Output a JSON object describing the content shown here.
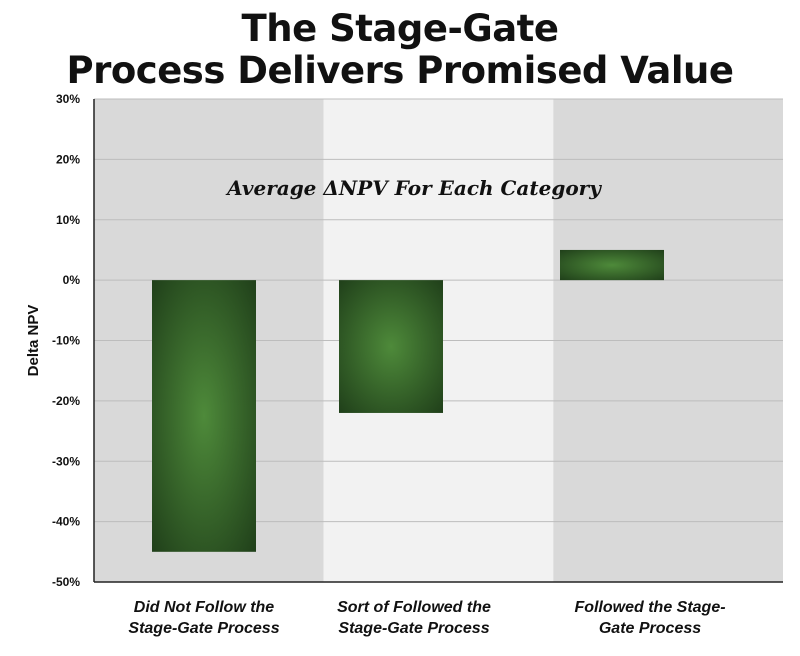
{
  "title_lines": [
    "The Stage-Gate",
    "Process Delivers Promised Value"
  ],
  "chart_data": {
    "type": "bar",
    "title": "The Stage-Gate Process Delivers Promised Value",
    "annotation": "Average ΔNPV For Each Category",
    "ylabel": "Delta NPV",
    "categories": [
      "Did Not Follow the Stage-Gate Process",
      "Sort of Followed the Stage-Gate Process",
      "Followed the Stage-Gate Process"
    ],
    "category_lines": [
      [
        "Did Not Follow the",
        "Stage-Gate Process"
      ],
      [
        "Sort of Followed the",
        "Stage-Gate Process"
      ],
      [
        "Followed the Stage-",
        "Gate Process"
      ]
    ],
    "values": [
      -45,
      -22,
      5
    ],
    "unit": "%",
    "ylim": [
      -50,
      30
    ],
    "yticks": [
      30,
      20,
      10,
      0,
      -10,
      -20,
      -30,
      -40,
      -50
    ],
    "ytick_labels": [
      "30%",
      "20%",
      "10%",
      "0%",
      "-10%",
      "-20%",
      "-30%",
      "-40%",
      "-50%"
    ],
    "grid": true,
    "colors": {
      "bar_center": "#4e8a3a",
      "bar_edge": "#20401a",
      "band_dark": "#d9d9d9",
      "band_light": "#f2f2f2",
      "grid": "#bdbdbd"
    }
  }
}
